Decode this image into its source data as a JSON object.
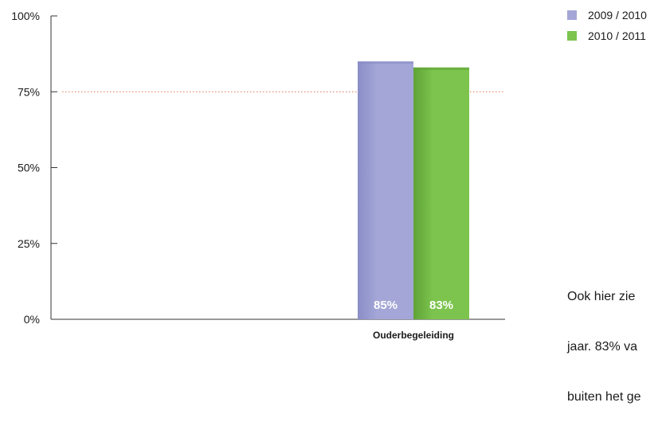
{
  "chart_data": {
    "type": "bar",
    "categories": [
      "Ouderbegeleiding"
    ],
    "series": [
      {
        "name": "2009 / 2010",
        "values": [
          85
        ],
        "labels": [
          "85%"
        ],
        "color": "#a3a6d6",
        "dark": "#8a8ec6"
      },
      {
        "name": "2010 / 2011",
        "values": [
          83
        ],
        "labels": [
          "83%"
        ],
        "color": "#7cc44e",
        "dark": "#5fa336"
      }
    ],
    "yticks": [
      "0%",
      "25%",
      "50%",
      "75%",
      "100%"
    ],
    "ylim": [
      0,
      100
    ],
    "reference_line": {
      "value": 75,
      "color": "#e07050",
      "style": "dotted"
    },
    "legend_position": "top-right"
  },
  "note": {
    "lines": [
      "Ook hier zie",
      "jaar. 83% va",
      "buiten het ge"
    ]
  }
}
